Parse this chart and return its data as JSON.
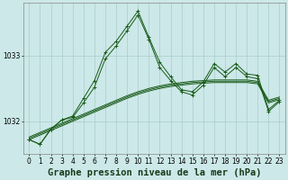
{
  "title": "Graphe pression niveau de la mer (hPa)",
  "bg_color": "#cce8e8",
  "grid_color": "#aacccc",
  "line_color": "#1a5c1a",
  "x_labels": [
    "0",
    "1",
    "2",
    "3",
    "4",
    "5",
    "6",
    "7",
    "8",
    "9",
    "10",
    "11",
    "12",
    "13",
    "14",
    "15",
    "16",
    "17",
    "18",
    "19",
    "20",
    "21",
    "22",
    "23"
  ],
  "ylim": [
    1031.5,
    1033.8
  ],
  "yticks": [
    1032,
    1033
  ],
  "jagged1": [
    1031.72,
    1031.65,
    1031.88,
    1032.02,
    1032.08,
    1032.35,
    1032.62,
    1033.05,
    1033.22,
    1033.45,
    1033.68,
    1033.28,
    1032.9,
    1032.68,
    1032.48,
    1032.45,
    1032.6,
    1032.88,
    1032.75,
    1032.88,
    1032.72,
    1032.7,
    1032.18,
    1032.32
  ],
  "jagged2": [
    1031.72,
    1031.65,
    1031.88,
    1032.02,
    1032.06,
    1032.28,
    1032.52,
    1032.95,
    1033.15,
    1033.38,
    1033.62,
    1033.25,
    1032.82,
    1032.62,
    1032.45,
    1032.4,
    1032.55,
    1032.82,
    1032.68,
    1032.82,
    1032.68,
    1032.65,
    1032.15,
    1032.3
  ],
  "smooth1": [
    1031.72,
    1031.79,
    1031.86,
    1031.93,
    1032.0,
    1032.07,
    1032.14,
    1032.21,
    1032.28,
    1032.35,
    1032.41,
    1032.46,
    1032.5,
    1032.53,
    1032.55,
    1032.57,
    1032.58,
    1032.59,
    1032.59,
    1032.59,
    1032.59,
    1032.57,
    1032.28,
    1032.33
  ],
  "smooth2": [
    1031.74,
    1031.81,
    1031.88,
    1031.95,
    1032.02,
    1032.09,
    1032.16,
    1032.23,
    1032.3,
    1032.37,
    1032.43,
    1032.48,
    1032.52,
    1032.55,
    1032.57,
    1032.59,
    1032.6,
    1032.61,
    1032.61,
    1032.61,
    1032.61,
    1032.59,
    1032.3,
    1032.35
  ],
  "smooth3": [
    1031.76,
    1031.83,
    1031.9,
    1031.97,
    1032.04,
    1032.11,
    1032.18,
    1032.25,
    1032.32,
    1032.39,
    1032.45,
    1032.5,
    1032.54,
    1032.57,
    1032.59,
    1032.61,
    1032.62,
    1032.63,
    1032.63,
    1032.63,
    1032.63,
    1032.61,
    1032.32,
    1032.37
  ],
  "title_fontsize": 7.5,
  "tick_fontsize": 5.5
}
